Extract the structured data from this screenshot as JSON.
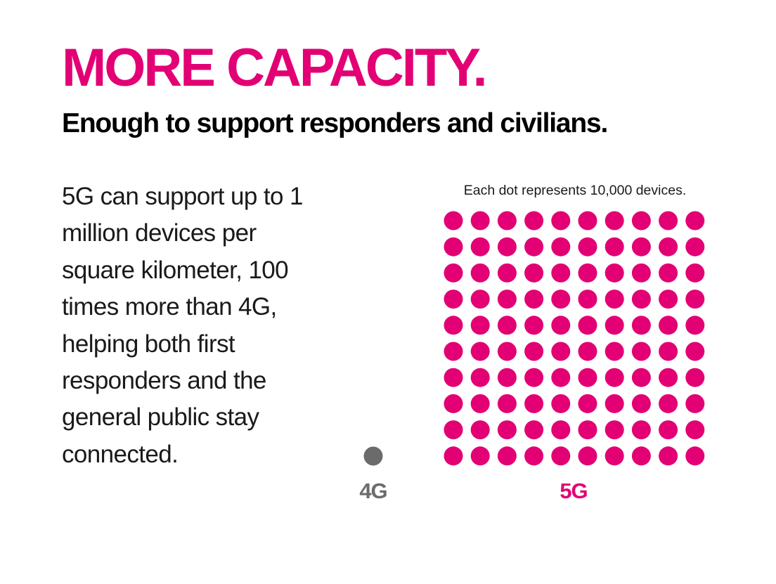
{
  "theme": {
    "accent": "#e20074",
    "text": "#000000",
    "muted": "#6b6b6b"
  },
  "header": {
    "title": "MORE CAPACITY.",
    "subtitle": "Enough to support responders and civilians."
  },
  "body": {
    "paragraph": "5G can support up to 1 million devices per square kilometer, 100 times more than 4G, helping both first responders and the general public stay connected."
  },
  "chart_data": {
    "type": "scatter",
    "note": "Each dot represents 10,000 devices.",
    "unit_devices_per_dot": 10000,
    "series": [
      {
        "name": "4G",
        "dots": 1,
        "color": "#6b6b6b"
      },
      {
        "name": "5G",
        "dots": 100,
        "color": "#e20074"
      }
    ]
  }
}
